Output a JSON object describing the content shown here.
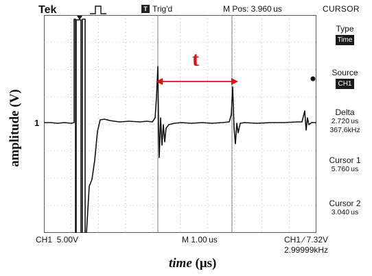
{
  "header": {
    "brand": "Tek",
    "trig_icon_letter": "T",
    "trig_status": "Trig'd",
    "m_pos": "M Pos: 3.960 us"
  },
  "side_menu": {
    "title": "CURSOR",
    "type_label": "Type",
    "type_value": "Time",
    "source_label": "Source",
    "source_value": "CH1",
    "delta_label": "Delta",
    "delta_time": "2.720 us",
    "delta_freq": "367.6kHz",
    "cursor1_label": "Cursor 1",
    "cursor1_value": "5.760 us",
    "cursor2_label": "Cursor 2",
    "cursor2_value": "3.040 us"
  },
  "footer": {
    "ch1_scale": "CH1  5.00V",
    "m_scale": "M 1.00 us",
    "trigger_level": "CH1 ∕ 7.32V",
    "frequency": "2.99999kHz"
  },
  "annotations": {
    "y_axis_label": "amplitude (V)",
    "x_axis_label_italic": "time",
    "x_axis_label_unit": " (μs)",
    "ground_marker": "1",
    "interval_label": "t"
  },
  "colors": {
    "trace": "#111111",
    "annotation_red": "#dd1111",
    "grid": "#8c8c8c"
  },
  "icons": [
    "pulse-icon",
    "trigger-icon",
    "ground-arrow-icon",
    "trigger-position-icon",
    "double-arrow-icon"
  ]
}
